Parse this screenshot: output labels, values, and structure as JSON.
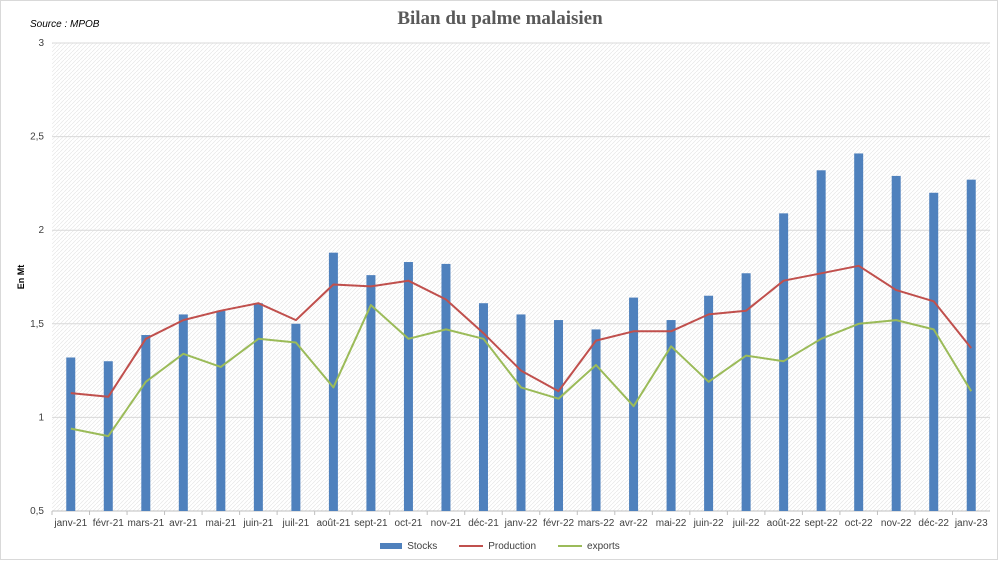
{
  "source": "Source : MPOB",
  "chart_data": {
    "type": "bar",
    "title": "Bilan du palme malaisien",
    "ylabel": "En Mt",
    "xlabel": "",
    "ylim": [
      0.5,
      3
    ],
    "yticks": [
      "0,5",
      "1",
      "1,5",
      "2",
      "2,5",
      "3"
    ],
    "grid": true,
    "legend_position": "bottom",
    "categories": [
      "janv-21",
      "févr-21",
      "mars-21",
      "avr-21",
      "mai-21",
      "juin-21",
      "juil-21",
      "août-21",
      "sept-21",
      "oct-21",
      "nov-21",
      "déc-21",
      "janv-22",
      "févr-22",
      "mars-22",
      "avr-22",
      "mai-22",
      "juin-22",
      "juil-22",
      "août-22",
      "sept-22",
      "oct-22",
      "nov-22",
      "déc-22",
      "janv-23"
    ],
    "series": [
      {
        "name": "Stocks",
        "type": "bar",
        "color": "#4f81bd",
        "values": [
          1.32,
          1.3,
          1.44,
          1.55,
          1.57,
          1.61,
          1.5,
          1.88,
          1.76,
          1.83,
          1.82,
          1.61,
          1.55,
          1.52,
          1.47,
          1.64,
          1.52,
          1.65,
          1.77,
          2.09,
          2.32,
          2.41,
          2.29,
          2.2,
          2.27
        ]
      },
      {
        "name": "Production",
        "type": "line",
        "color": "#c0504d",
        "values": [
          1.13,
          1.11,
          1.42,
          1.52,
          1.57,
          1.61,
          1.52,
          1.71,
          1.7,
          1.73,
          1.63,
          1.45,
          1.25,
          1.14,
          1.41,
          1.46,
          1.46,
          1.55,
          1.57,
          1.73,
          1.77,
          1.81,
          1.68,
          1.62,
          1.37
        ]
      },
      {
        "name": "exports",
        "type": "line",
        "color": "#9bbb59",
        "values": [
          0.94,
          0.9,
          1.19,
          1.34,
          1.27,
          1.42,
          1.4,
          1.16,
          1.6,
          1.42,
          1.47,
          1.42,
          1.16,
          1.1,
          1.28,
          1.06,
          1.38,
          1.19,
          1.33,
          1.3,
          1.42,
          1.5,
          1.52,
          1.47,
          1.14
        ]
      }
    ]
  }
}
